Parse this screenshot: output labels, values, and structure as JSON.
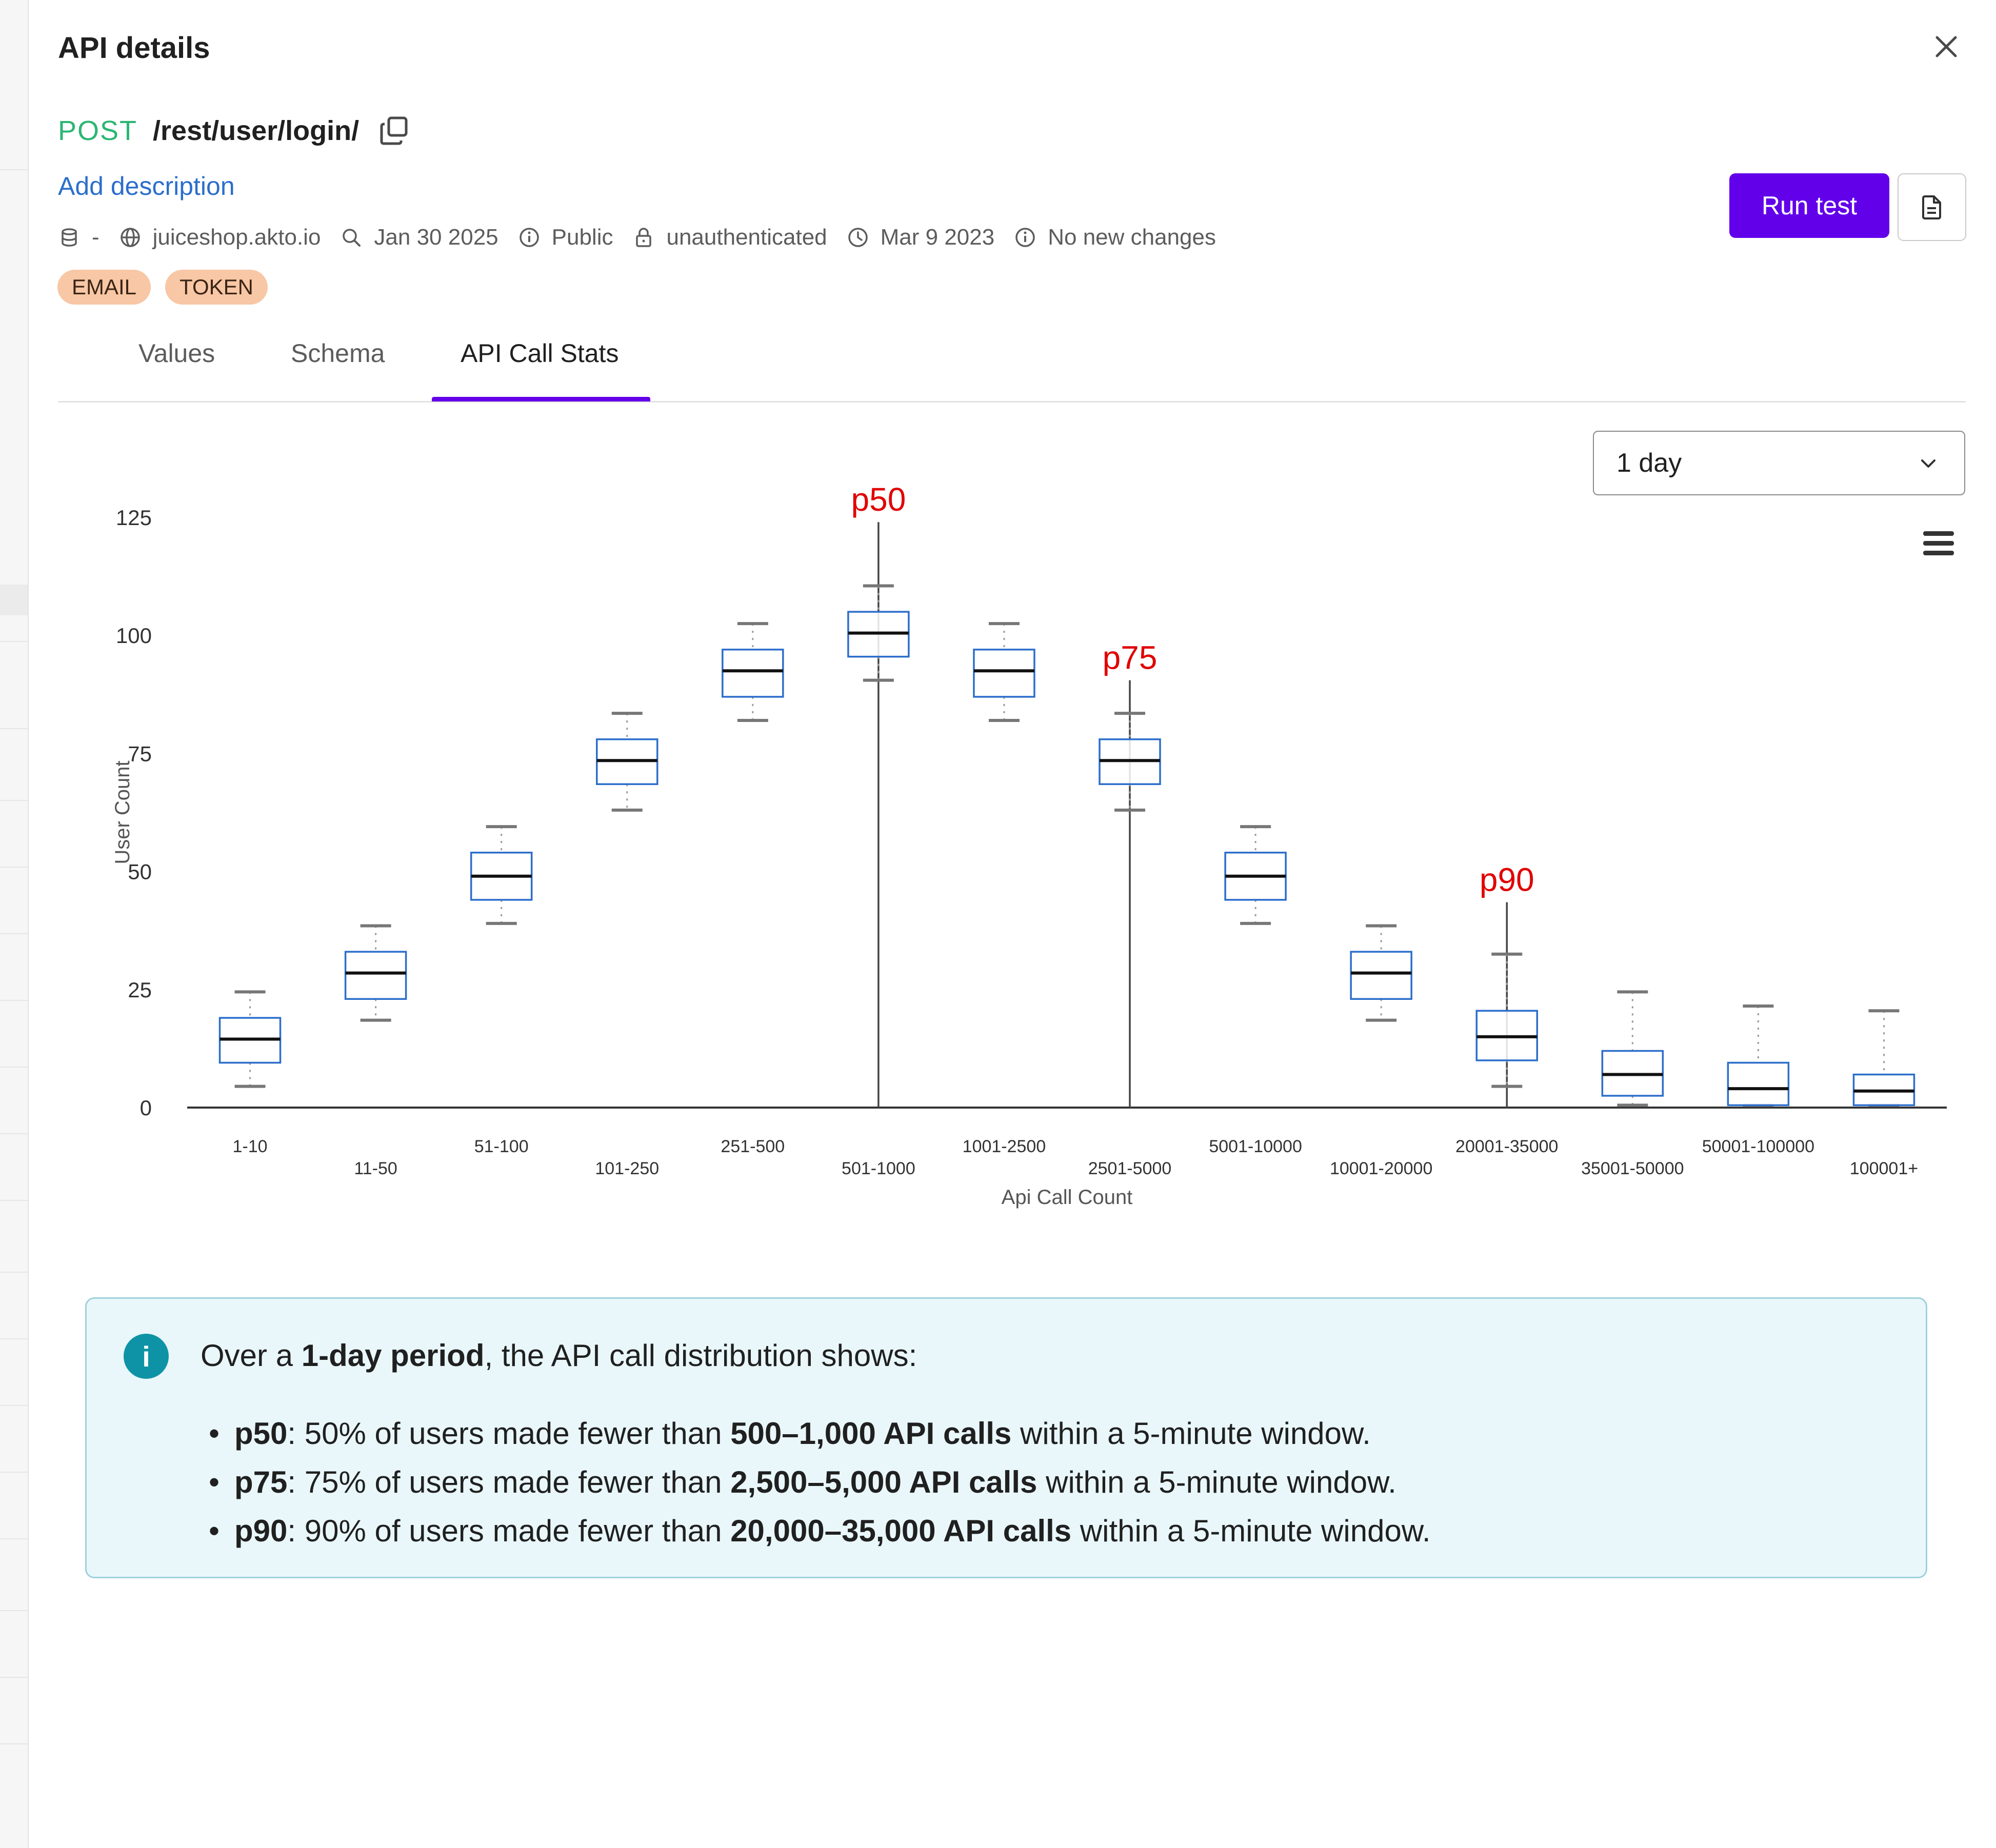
{
  "title": "API details",
  "endpoint": {
    "method": "POST",
    "path": "/rest/user/login/"
  },
  "add_description": "Add description",
  "meta": {
    "collection": "-",
    "host": "juiceshop.akto.io",
    "discovered": "Jan 30 2025",
    "access": "Public",
    "auth": "unauthenticated",
    "last_seen": "Mar 9 2023",
    "changes": "No new changes"
  },
  "tags": [
    "EMAIL",
    "TOKEN"
  ],
  "run_test_label": "Run test",
  "tabs": [
    "Values",
    "Schema",
    "API Call Stats"
  ],
  "active_tab": "API Call Stats",
  "time_range": "1 day",
  "icons": {
    "close": "close-icon",
    "copy": "copy-icon",
    "document": "document-icon",
    "menu": "hamburger-menu-icon",
    "info": "info-icon"
  },
  "colors": {
    "accent": "#6200ea",
    "method": "#2bb673",
    "box_stroke": "#2c6ecb",
    "percentile": "#e00000"
  },
  "chart_data": {
    "type": "boxplot",
    "xlabel": "Api Call Count",
    "ylabel": "User Count",
    "ylim": [
      0,
      125
    ],
    "yticks": [
      0,
      25,
      50,
      75,
      100,
      125
    ],
    "categories": [
      "1-10",
      "11-50",
      "51-100",
      "101-250",
      "251-500",
      "501-1000",
      "1001-2500",
      "2501-5000",
      "5001-10000",
      "10001-20000",
      "20001-35000",
      "35001-50000",
      "50001-100000",
      "100001+"
    ],
    "boxes": [
      {
        "low": 4.5,
        "q1": 9.5,
        "median": 14.5,
        "q3": 19,
        "high": 24.5
      },
      {
        "low": 18.5,
        "q1": 23,
        "median": 28.5,
        "q3": 33,
        "high": 38.5
      },
      {
        "low": 39,
        "q1": 44,
        "median": 49,
        "q3": 54,
        "high": 59.5
      },
      {
        "low": 63,
        "q1": 68.5,
        "median": 73.5,
        "q3": 78,
        "high": 83.5
      },
      {
        "low": 82,
        "q1": 87,
        "median": 92.5,
        "q3": 97,
        "high": 102.5
      },
      {
        "low": 90.5,
        "q1": 95.5,
        "median": 100.5,
        "q3": 105,
        "high": 110.5
      },
      {
        "low": 82,
        "q1": 87,
        "median": 92.5,
        "q3": 97,
        "high": 102.5
      },
      {
        "low": 63,
        "q1": 68.5,
        "median": 73.5,
        "q3": 78,
        "high": 83.5
      },
      {
        "low": 39,
        "q1": 44,
        "median": 49,
        "q3": 54,
        "high": 59.5
      },
      {
        "low": 18.5,
        "q1": 23,
        "median": 28.5,
        "q3": 33,
        "high": 38.5
      },
      {
        "low": 4.5,
        "q1": 10,
        "median": 15,
        "q3": 20.5,
        "high": 32.5
      },
      {
        "low": 0.5,
        "q1": 2.5,
        "median": 7,
        "q3": 12,
        "high": 24.5
      },
      {
        "low": 0.5,
        "q1": 0.5,
        "median": 4,
        "q3": 9.5,
        "high": 21.5
      },
      {
        "low": 0.5,
        "q1": 0.5,
        "median": 3.5,
        "q3": 7,
        "high": 20.5
      }
    ],
    "markers": [
      {
        "label": "p50",
        "category": "501-1000",
        "top": 124
      },
      {
        "label": "p75",
        "category": "2501-5000",
        "top": 90.5
      },
      {
        "label": "p90",
        "category": "20001-35000",
        "top": 43.5
      }
    ]
  },
  "info": {
    "lead_prefix": "Over a ",
    "lead_bold": "1-day period",
    "lead_suffix": ", the API call distribution shows:",
    "items": [
      {
        "key": "p50",
        "text1": ": 50% of users made fewer than ",
        "bold": "500–1,000 API calls",
        "text2": " within a 5-minute window."
      },
      {
        "key": "p75",
        "text1": ": 75% of users made fewer than ",
        "bold": "2,500–5,000 API calls",
        "text2": " within a 5-minute window."
      },
      {
        "key": "p90",
        "text1": ": 90% of users made fewer than ",
        "bold": "20,000–35,000 API calls",
        "text2": " within a 5-minute window."
      }
    ]
  }
}
